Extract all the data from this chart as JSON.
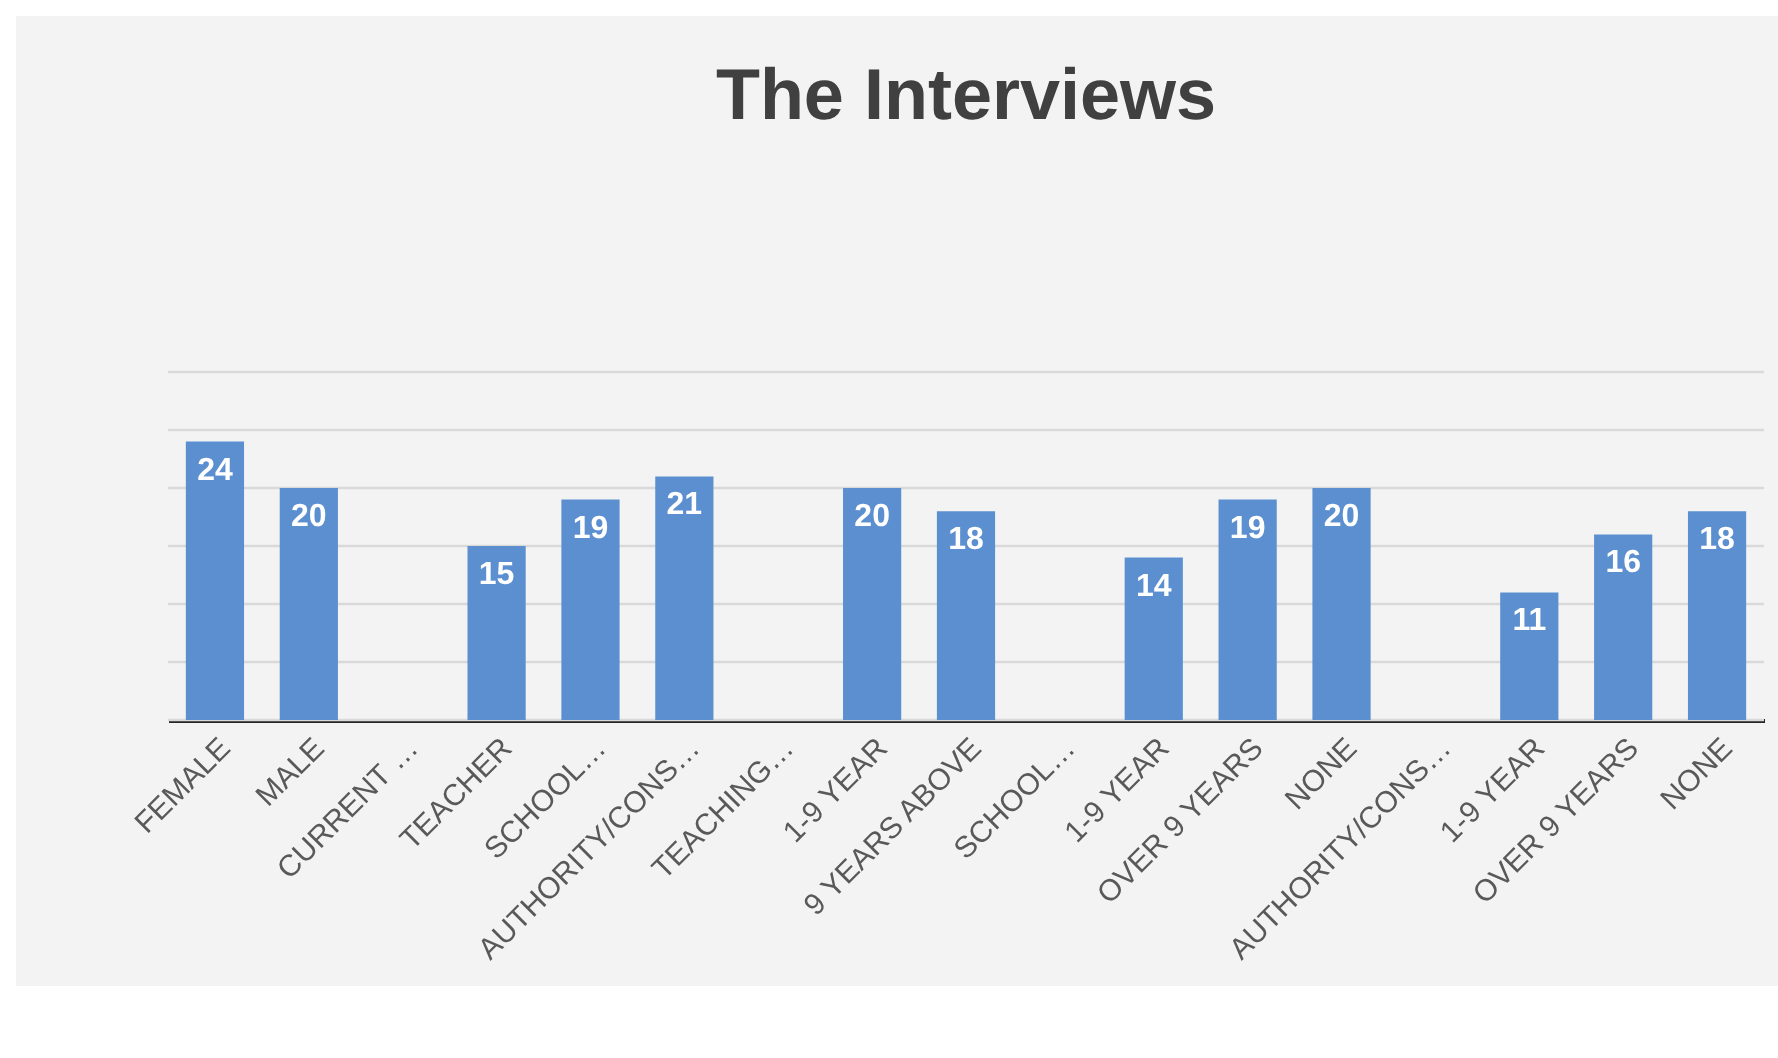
{
  "chart_data": {
    "type": "bar",
    "title": "The Interviews",
    "categories": [
      "FEMALE",
      "MALE",
      "CURRENT …",
      "TEACHER",
      "SCHOOL…",
      "AUTHORITY/CONS…",
      "TEACHING…",
      "1-9 YEAR",
      "9 YEARS ABOVE",
      "SCHOOL…",
      "1-9 YEAR",
      "OVER 9 YEARS",
      "NONE",
      "AUTHORITY/CONS…",
      "1-9 YEAR",
      "OVER 9 YEARS",
      "NONE"
    ],
    "values": [
      24,
      20,
      null,
      15,
      19,
      21,
      null,
      20,
      18,
      null,
      14,
      19,
      20,
      null,
      11,
      16,
      18
    ],
    "color": "#5b8fd0",
    "ylim": [
      0,
      30
    ],
    "yticks": [
      {
        "value": 0,
        "label": null
      },
      {
        "value": 5,
        "label": null
      },
      {
        "value": 10,
        "label": null
      },
      {
        "value": 15,
        "label": null
      },
      {
        "value": 20,
        "label": null
      },
      {
        "value": 25,
        "label": null
      },
      {
        "value": 30,
        "label": null
      }
    ],
    "tick_labels": "x",
    "grid": "y",
    "data_labels": true
  }
}
